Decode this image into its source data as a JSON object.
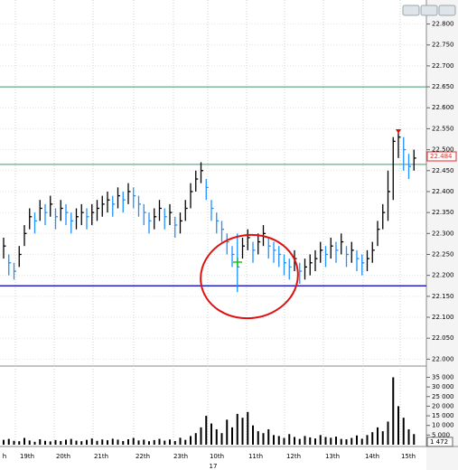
{
  "chart_data": {
    "type": "hlc",
    "x_labels": [
      "h",
      "19th",
      "20th",
      "21th",
      "22th",
      "23th",
      "10th",
      "11th",
      "12th",
      "13th",
      "14th",
      "15th"
    ],
    "x_sublabel": "17",
    "high": [
      22.29,
      22.25,
      22.23,
      22.27,
      22.32,
      22.36,
      22.35,
      22.38,
      22.37,
      22.39,
      22.36,
      22.38,
      22.37,
      22.35,
      22.36,
      22.37,
      22.36,
      22.37,
      22.38,
      22.39,
      22.4,
      22.39,
      22.41,
      22.4,
      22.42,
      22.41,
      22.39,
      22.37,
      22.35,
      22.36,
      22.38,
      22.36,
      22.37,
      22.34,
      22.35,
      22.38,
      22.42,
      22.45,
      22.47,
      22.43,
      22.38,
      22.35,
      22.33,
      22.3,
      22.27,
      22.3,
      22.29,
      22.31,
      22.28,
      22.3,
      22.32,
      22.29,
      22.28,
      22.27,
      22.25,
      22.24,
      22.26,
      22.23,
      22.24,
      22.25,
      22.26,
      22.28,
      22.27,
      22.29,
      22.28,
      22.3,
      22.27,
      22.28,
      22.26,
      22.25,
      22.26,
      22.28,
      22.33,
      22.37,
      22.45,
      22.53,
      22.54,
      22.53,
      22.49,
      22.5
    ],
    "low": [
      22.24,
      22.2,
      22.19,
      22.22,
      22.27,
      22.31,
      22.3,
      22.33,
      22.32,
      22.34,
      22.31,
      22.33,
      22.32,
      22.3,
      22.31,
      22.32,
      22.31,
      22.32,
      22.33,
      22.34,
      22.35,
      22.34,
      22.36,
      22.35,
      22.37,
      22.36,
      22.34,
      22.32,
      22.3,
      22.31,
      22.33,
      22.31,
      22.32,
      22.29,
      22.3,
      22.33,
      22.36,
      22.4,
      22.42,
      22.38,
      22.33,
      22.3,
      22.28,
      22.25,
      22.22,
      22.16,
      22.24,
      22.26,
      22.23,
      22.25,
      22.27,
      22.24,
      22.23,
      22.22,
      22.2,
      22.19,
      22.21,
      22.18,
      22.19,
      22.2,
      22.21,
      22.23,
      22.22,
      22.24,
      22.23,
      22.25,
      22.22,
      22.23,
      22.21,
      22.2,
      22.21,
      22.23,
      22.27,
      22.31,
      22.33,
      22.38,
      22.48,
      22.45,
      22.43,
      22.45
    ],
    "close": [
      22.27,
      22.23,
      22.21,
      22.25,
      22.3,
      22.34,
      22.33,
      22.36,
      22.35,
      22.37,
      22.34,
      22.36,
      22.35,
      22.33,
      22.34,
      22.35,
      22.34,
      22.35,
      22.36,
      22.37,
      22.38,
      22.37,
      22.39,
      22.38,
      22.4,
      22.39,
      22.37,
      22.35,
      22.33,
      22.34,
      22.36,
      22.34,
      22.35,
      22.32,
      22.33,
      22.36,
      22.4,
      22.43,
      22.45,
      22.41,
      22.36,
      22.33,
      22.31,
      22.28,
      22.25,
      22.22,
      22.27,
      22.29,
      22.26,
      22.28,
      22.3,
      22.27,
      22.26,
      22.25,
      22.23,
      22.22,
      22.24,
      22.21,
      22.22,
      22.23,
      22.24,
      22.26,
      22.25,
      22.27,
      22.26,
      22.28,
      22.25,
      22.26,
      22.24,
      22.23,
      22.24,
      22.26,
      22.31,
      22.35,
      22.4,
      22.52,
      22.53,
      22.5,
      22.46,
      22.48
    ],
    "volume": [
      2500,
      3000,
      2000,
      1800,
      3500,
      2200,
      1500,
      2800,
      2000,
      1700,
      2400,
      1900,
      2600,
      3000,
      2100,
      1800,
      2500,
      3200,
      2000,
      2700,
      2300,
      3100,
      2600,
      1900,
      2800,
      3500,
      2200,
      2600,
      1800,
      2400,
      3000,
      2100,
      2700,
      1900,
      3600,
      2500,
      4500,
      6000,
      9000,
      15000,
      11000,
      8000,
      6000,
      13000,
      9000,
      16000,
      14000,
      17000,
      10000,
      7000,
      6000,
      8000,
      5000,
      4500,
      3500,
      5500,
      4000,
      3000,
      4500,
      3800,
      3200,
      5000,
      4000,
      3600,
      4200,
      3000,
      2800,
      3500,
      4800,
      3100,
      5000,
      6500,
      9000,
      7000,
      12000,
      35000,
      20000,
      14000,
      8000,
      5500
    ],
    "up_color": "#000000",
    "down_color": "#1e90ff",
    "volume_color": "#000000",
    "ylim": [
      21.99,
      22.84
    ],
    "yticks": [
      {
        "value": 22.0,
        "label": "22.000"
      },
      {
        "value": 22.05,
        "label": "22.050"
      },
      {
        "value": 22.1,
        "label": "22.100"
      },
      {
        "value": 22.15,
        "label": "22.150"
      },
      {
        "value": 22.2,
        "label": "22.200"
      },
      {
        "value": 22.25,
        "label": "22.250"
      },
      {
        "value": 22.3,
        "label": "22.300"
      },
      {
        "value": 22.35,
        "label": "22.350"
      },
      {
        "value": 22.4,
        "label": "22.400"
      },
      {
        "value": 22.45,
        "label": "22.450"
      },
      {
        "value": 22.5,
        "label": "22.500"
      },
      {
        "value": 22.55,
        "label": "22.550"
      },
      {
        "value": 22.6,
        "label": "22.600"
      },
      {
        "value": 22.65,
        "label": "22.650"
      },
      {
        "value": 22.7,
        "label": "22.700"
      },
      {
        "value": 22.75,
        "label": "22.750"
      },
      {
        "value": 22.8,
        "label": "22.800"
      }
    ],
    "levels": [
      {
        "value": 22.65,
        "color": "#3c9a6a"
      },
      {
        "value": 22.465,
        "color": "#3c9a6a"
      },
      {
        "value": 22.175,
        "color": "#2020d0"
      }
    ],
    "last_price": 22.484,
    "last_price_color": "#e03030",
    "vlim": [
      0,
      38500
    ],
    "vticks": [
      {
        "value": 5000,
        "label": "5 000"
      },
      {
        "value": 10000,
        "label": "10 000"
      },
      {
        "value": 15000,
        "label": "15 000"
      },
      {
        "value": 20000,
        "label": "20 000"
      },
      {
        "value": 25000,
        "label": "25 000"
      },
      {
        "value": 30000,
        "label": "30 000"
      },
      {
        "value": 35000,
        "label": "35 000"
      }
    ],
    "last_volume": {
      "value": 1472,
      "label": "1 472"
    },
    "grid": true
  }
}
